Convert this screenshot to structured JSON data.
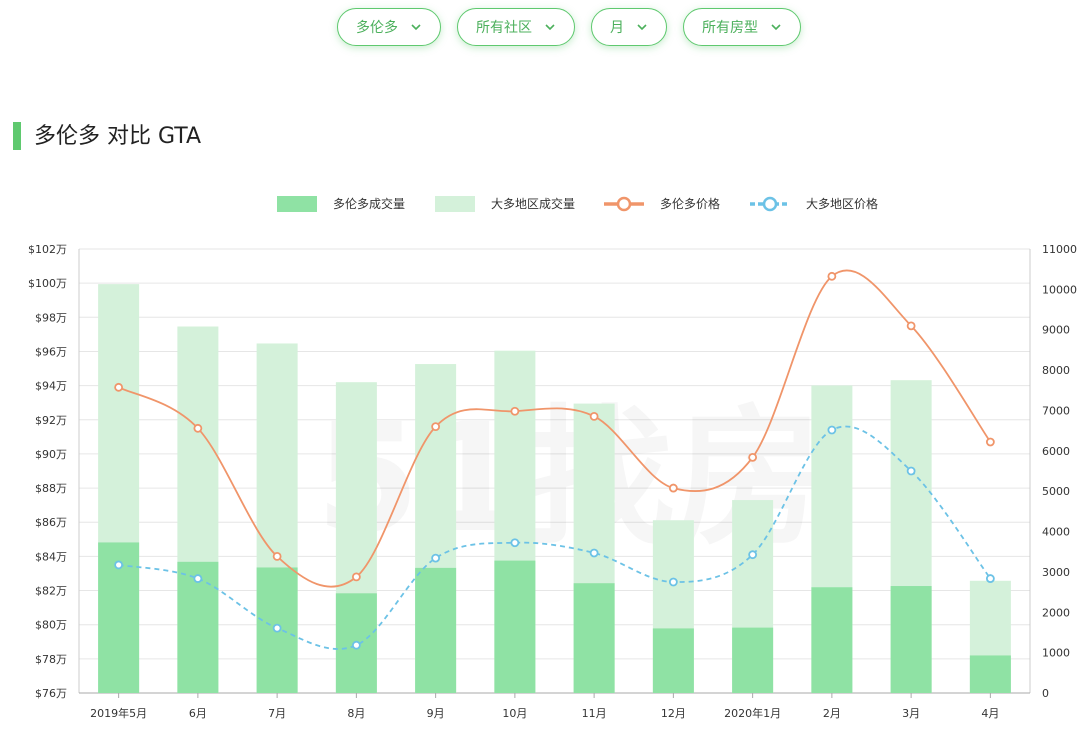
{
  "filters": [
    {
      "label": "多伦多"
    },
    {
      "label": "所有社区"
    },
    {
      "label": "月"
    },
    {
      "label": "所有房型"
    }
  ],
  "section": {
    "title": "多伦多 对比 GTA"
  },
  "watermark": "51找房",
  "chart_data": {
    "type": "bar",
    "categories": [
      "2019年5月",
      "6月",
      "7月",
      "8月",
      "9月",
      "10月",
      "11月",
      "12月",
      "2020年1月",
      "2月",
      "3月",
      "4月"
    ],
    "left_axis": {
      "ticks": [
        "$76万",
        "$78万",
        "$80万",
        "$82万",
        "$84万",
        "$86万",
        "$88万",
        "$90万",
        "$92万",
        "$94万",
        "$96万",
        "$98万",
        "$100万",
        "$102万"
      ],
      "min": 76,
      "max": 102,
      "unit": "万"
    },
    "right_axis": {
      "ticks": [
        "0",
        "1000",
        "2000",
        "3000",
        "4000",
        "5000",
        "6000",
        "7000",
        "8000",
        "9000",
        "10000",
        "11000"
      ],
      "min": 0,
      "max": 11000
    },
    "series": [
      {
        "name": "多伦多成交量",
        "kind": "bar",
        "axis": "right",
        "color": "#8fe2a4",
        "values": [
          3730,
          3250,
          3110,
          2470,
          3100,
          3280,
          2720,
          1600,
          1620,
          2620,
          2650,
          930
        ]
      },
      {
        "name": "大多地区成交量",
        "kind": "bar",
        "axis": "right",
        "color": "#d4f1da",
        "values": [
          10130,
          9080,
          8660,
          7700,
          8150,
          8480,
          7170,
          4280,
          4780,
          7620,
          7750,
          2780
        ]
      },
      {
        "name": "多伦多价格",
        "kind": "line",
        "axis": "left",
        "color": "#f0956a",
        "values": [
          93.9,
          91.5,
          84.0,
          82.8,
          91.6,
          92.5,
          92.2,
          88.0,
          89.8,
          100.4,
          97.5,
          90.7
        ]
      },
      {
        "name": "大多地区价格",
        "kind": "line",
        "axis": "left",
        "color": "#6cc2e6",
        "dashed": true,
        "values": [
          83.5,
          82.7,
          79.8,
          78.8,
          83.9,
          84.8,
          84.2,
          82.5,
          84.1,
          91.4,
          89.0,
          82.7
        ]
      }
    ],
    "legend": [
      "多伦多成交量",
      "大多地区成交量",
      "多伦多价格",
      "大多地区价格"
    ]
  }
}
